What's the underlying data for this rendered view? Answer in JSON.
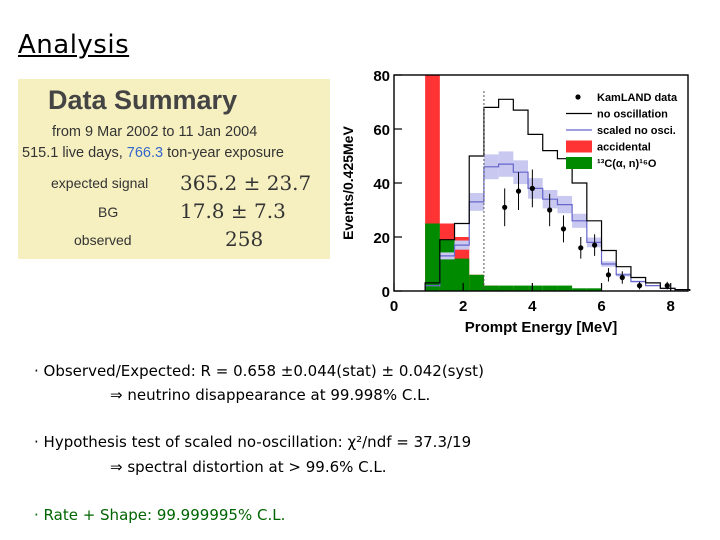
{
  "slide": {
    "title": "Analysis"
  },
  "summary": {
    "heading": "Data Summary",
    "period": "from 9 Mar 2002 to 11 Jan 2004",
    "exposure_pre": "515.1 live days, ",
    "exposure_highlight": "766.3",
    "exposure_post": " ton-year exposure",
    "rows": [
      {
        "label": "expected signal",
        "value": "365.2 ± 23.7"
      },
      {
        "label": "BG",
        "value": "17.8 ± 7.3"
      },
      {
        "label": "observed",
        "value": "258"
      }
    ]
  },
  "bullets": [
    {
      "text": "· Observed/Expected: R = 0.658 ±0.044(stat) ± 0.042(syst)",
      "sub": "⇒ neutrino disappearance at 99.998% C.L."
    },
    {
      "text": "· Hypothesis test of scaled no-oscillation:  χ²/ndf = 37.3/19",
      "sub": "⇒ spectral distortion at > 99.6% C.L."
    },
    {
      "text": "· Rate + Shape: 99.999995% C.L.",
      "sub": ""
    }
  ],
  "colors": {
    "summary_bg": "#f6f0c0",
    "accidental": "#ff3333",
    "alpha_n": "#008a00",
    "scaled": "#c8c8f0",
    "scaled_line": "#6666cc",
    "highlight": "#3366cc",
    "rate_shape_text": "#006400"
  },
  "chart_data": {
    "type": "histogram",
    "xlabel": "Prompt Energy [MeV]",
    "ylabel": "Events/0.425MeV",
    "xlim": [
      0,
      8.5
    ],
    "ylim": [
      0,
      80
    ],
    "xticks": [
      "0",
      "2",
      "4",
      "6",
      "8"
    ],
    "yticks": [
      "0",
      "20",
      "40",
      "60",
      "80"
    ],
    "threshold": 2.6,
    "bin_edges": [
      0.9,
      1.325,
      1.75,
      2.175,
      2.6,
      3.025,
      3.45,
      3.875,
      4.3,
      4.725,
      5.15,
      5.575,
      6.0,
      6.425,
      6.85,
      7.275,
      7.7,
      8.125,
      8.55
    ],
    "legend": [
      "KamLAND data",
      "no oscillation",
      "scaled no osci.",
      "accidental",
      "¹³C(α, n)¹⁶O"
    ],
    "series": [
      {
        "name": "KamLAND data",
        "x": [
          3.2,
          3.6,
          4.0,
          4.5,
          4.9,
          5.4,
          5.8,
          6.2,
          6.6,
          7.1,
          7.9
        ],
        "y": [
          31,
          37,
          38,
          30,
          23,
          16,
          17,
          6,
          5,
          2,
          2
        ],
        "err": [
          7,
          7,
          7,
          6,
          5,
          4,
          4,
          2.5,
          2.3,
          1.4,
          1.4
        ]
      },
      {
        "name": "no oscillation",
        "values": [
          3,
          19,
          25,
          50,
          68,
          71,
          67,
          58,
          52,
          49,
          40,
          26,
          15,
          9,
          5,
          3,
          1,
          0.5
        ]
      },
      {
        "name": "scaled no osci.",
        "values": [
          2,
          13,
          17,
          33,
          46,
          47,
          44,
          38,
          34,
          32,
          26,
          18,
          10,
          6,
          3.5,
          2,
          1,
          0.5
        ]
      },
      {
        "name": "accidental",
        "values": [
          80,
          25,
          20,
          6,
          2,
          1,
          0,
          0,
          0,
          0,
          0,
          0,
          0,
          0,
          0,
          0,
          0,
          0
        ]
      },
      {
        "name": "¹³C(α, n)¹⁶O",
        "values": [
          25,
          19,
          12,
          6,
          2,
          2,
          2,
          2,
          2,
          2,
          1,
          1,
          0,
          0,
          0,
          0,
          0,
          0
        ]
      }
    ]
  }
}
